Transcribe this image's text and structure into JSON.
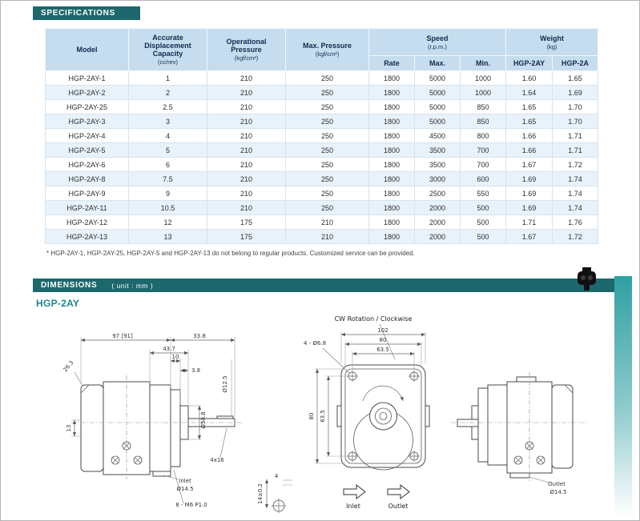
{
  "spec_section": {
    "banner": "SPECIFICATIONS",
    "footnote": "* HGP-2AY-1, HGP-2AY-25, HGP-2AY-5 and HGP-2AY-13 do not belong to regular products. Customized service can be provided."
  },
  "table": {
    "headers": {
      "model": "Model",
      "capacity": "Accurate Displacement Capacity",
      "capacity_unit": "(cc/rev)",
      "op_pressure": "Operational Pressure",
      "op_pressure_unit": "(kgf/cm²)",
      "max_pressure": "Max. Pressure",
      "max_pressure_unit": "(kgf/cm²)",
      "speed": "Speed",
      "speed_unit": "(r.p.m.)",
      "speed_rate": "Rate",
      "speed_max": "Max.",
      "speed_min": "Min.",
      "weight": "Weight",
      "weight_unit": "(kg)",
      "weight_2ay": "HGP-2AY",
      "weight_2a": "HGP-2A"
    },
    "rows": [
      [
        "HGP-2AY-1",
        "1",
        "210",
        "250",
        "1800",
        "5000",
        "1000",
        "1.60",
        "1.65"
      ],
      [
        "HGP-2AY-2",
        "2",
        "210",
        "250",
        "1800",
        "5000",
        "1000",
        "1.64",
        "1.69"
      ],
      [
        "HGP-2AY-25",
        "2.5",
        "210",
        "250",
        "1800",
        "5000",
        "850",
        "1.65",
        "1.70"
      ],
      [
        "HGP-2AY-3",
        "3",
        "210",
        "250",
        "1800",
        "5000",
        "850",
        "1.65",
        "1.70"
      ],
      [
        "HGP-2AY-4",
        "4",
        "210",
        "250",
        "1800",
        "4500",
        "800",
        "1.66",
        "1.71"
      ],
      [
        "HGP-2AY-5",
        "5",
        "210",
        "250",
        "1800",
        "3500",
        "700",
        "1.66",
        "1.71"
      ],
      [
        "HGP-2AY-6",
        "6",
        "210",
        "250",
        "1800",
        "3500",
        "700",
        "1.67",
        "1.72"
      ],
      [
        "HGP-2AY-8",
        "7.5",
        "210",
        "250",
        "1800",
        "3000",
        "600",
        "1.69",
        "1.74"
      ],
      [
        "HGP-2AY-9",
        "9",
        "210",
        "250",
        "1800",
        "2500",
        "550",
        "1.69",
        "1.74"
      ],
      [
        "HGP-2AY-11",
        "10.5",
        "210",
        "250",
        "1800",
        "2000",
        "500",
        "1.69",
        "1.74"
      ],
      [
        "HGP-2AY-12",
        "12",
        "175",
        "210",
        "1800",
        "2000",
        "500",
        "1.71",
        "1.76"
      ],
      [
        "HGP-2AY-13",
        "13",
        "175",
        "210",
        "1800",
        "2000",
        "500",
        "1.67",
        "1.72"
      ]
    ]
  },
  "dim_section": {
    "banner": "DIMENSIONS",
    "unit": "( unit : mm )",
    "model": "HGP-2AY",
    "side_view": {
      "dim_97": "97 [91]",
      "dim_338": "33.8",
      "dim_437": "43.7",
      "dim_10": "10",
      "dim_38": "3.8",
      "dim_263": "26.3",
      "dim_13": "13",
      "dia_shaft": "Ø12.5",
      "dia_pilot": "Ø50.8",
      "key": "4x16",
      "inlet": "Inlet",
      "inlet_dia": "Ø14.5",
      "screws": "8 - M6 P1.0"
    },
    "front_view": {
      "cw": "CW Rotation / Clockwise",
      "dim_102": "102",
      "dim_80_top": "80",
      "dim_635_top": "63.5",
      "holes": "4 - Ø6.8",
      "dim_80_left": "80",
      "dim_635_left": "63.5",
      "dim_4": "4",
      "dim_14": "14±0.2",
      "inlet": "Inlet",
      "outlet": "Outlet"
    },
    "rear_view": {
      "outlet": "Outlet",
      "outlet_dia": "Ø14.5"
    }
  }
}
